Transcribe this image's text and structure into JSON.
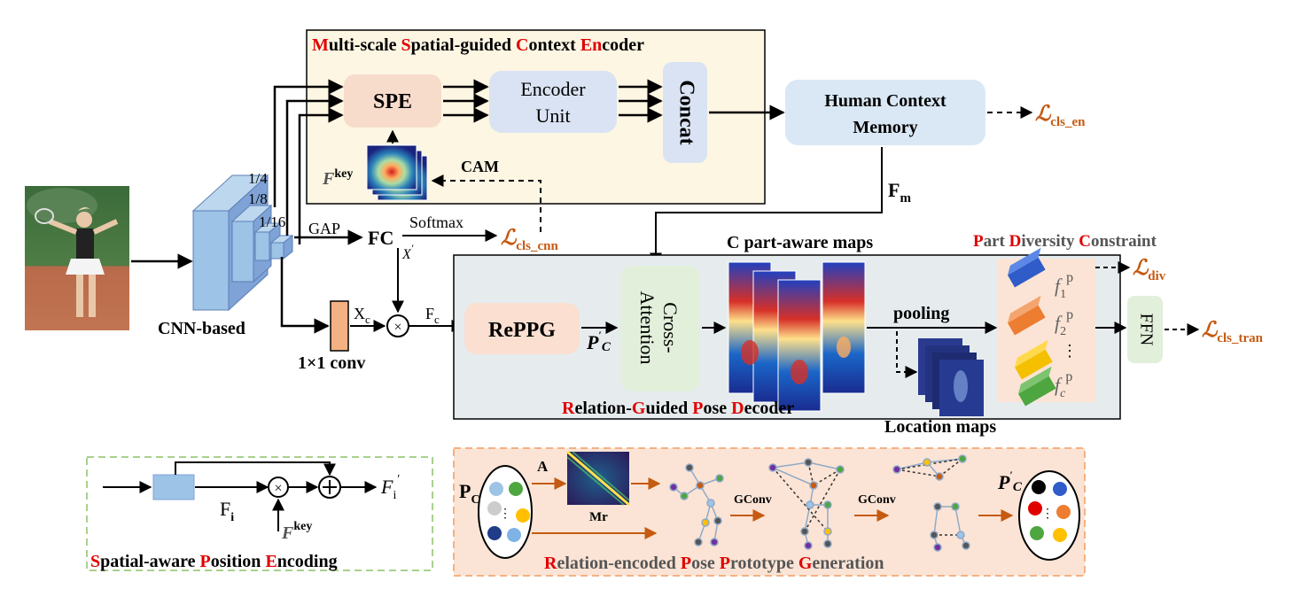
{
  "encoder": {
    "title": [
      {
        "initial": "M",
        "rest": "ulti-scale "
      },
      {
        "initial": "S",
        "rest": "patial-guided  "
      },
      {
        "initial": "C",
        "rest": "ontext "
      },
      {
        "initial": "E",
        "rest": "n",
        "tail": "coder"
      }
    ],
    "spe": "SPE",
    "encoder_unit_line1": "Encoder",
    "encoder_unit_line2": "Unit",
    "concat": "Concat",
    "fkey_label": "F",
    "fkey_sup": "key",
    "cam": "CAM"
  },
  "memory": {
    "line1": "Human Context",
    "line2": "Memory",
    "fm": "F",
    "fm_sub": "m",
    "loss": "cls_en"
  },
  "backbone": {
    "scale_1_4": "1/4",
    "scale_1_8": "1/8",
    "scale_1_16": "1/16",
    "gap": "GAP",
    "fc": "FC",
    "softmax": "Softmax",
    "xprime": "X",
    "loss": "cls_cnn",
    "cnn_label": "CNN-based",
    "conv_label": "1×1 conv",
    "xc": "X",
    "xc_sub": "c",
    "fc_feat": "F",
    "fc_feat_sub": "c",
    "multiply": "×"
  },
  "decoder": {
    "reppg": "RePPG",
    "pc": "P",
    "pc_sub": "C",
    "cross_line1": "Cross-",
    "cross_line2": "Attention",
    "maps_title": "C part-aware maps",
    "pooling": "pooling",
    "location_maps": "Location maps",
    "title_parts": [
      {
        "initial": "R",
        "rest": "elation-"
      },
      {
        "initial": "G",
        "rest": "uided "
      },
      {
        "initial": "P",
        "rest": "ose "
      },
      {
        "initial": "D",
        "rest": "ecoder"
      }
    ]
  },
  "diversity": {
    "title_parts": [
      {
        "initial": "P",
        "rest": "art "
      },
      {
        "initial": "D",
        "rest": "iversity "
      },
      {
        "initial": "C",
        "rest": "onstraint"
      }
    ],
    "f1_sub": "1",
    "f2_sub": "2",
    "fc_sub": "c",
    "sup": "p",
    "f": "f",
    "dots": "⋮",
    "loss": "div"
  },
  "ffn": {
    "label": "FFN",
    "loss": "cls_tran"
  },
  "spe_detail": {
    "fi": "F",
    "fi_sub": "i",
    "fi_prime": "F",
    "fi_prime_sub": "i",
    "fkey": "F",
    "fkey_sup": "key",
    "title_parts": [
      {
        "initial": "S",
        "rest": "patial-aware "
      },
      {
        "initial": "P",
        "rest": "osition  "
      },
      {
        "initial": "E",
        "rest": "ncoding"
      }
    ]
  },
  "reppg_detail": {
    "pc": "P",
    "pc_sub": "C",
    "a": "A",
    "mr": "Mr",
    "gconv1": "GConv",
    "gconv2": "GConv",
    "pc_prime": "P",
    "pc_prime_sub": "C",
    "dots": "⋮",
    "title_parts": [
      {
        "initial": "R",
        "rest": "elation-encoded "
      },
      {
        "initial": "P",
        "rest": "ose "
      },
      {
        "initial": "P",
        "rest": "rototype "
      },
      {
        "initial": "G",
        "rest": "eneration"
      }
    ]
  },
  "loss_symbol": "ℒ",
  "colors": {
    "encoder_bg": "#fdf6e3",
    "spe_box": "#f8dccb",
    "encoder_unit": "#dae3f3",
    "memory": "#dae8f5",
    "decoder_bg": "#e6ecee",
    "reppg_box": "#fbdfd0",
    "cross_attn": "#e2efda",
    "ffn": "#e2efda",
    "diversity_bg": "#fbe4d5",
    "spe_detail_border": "#a9d18e",
    "reppg_detail_bg": "#fbe4d5",
    "reppg_detail_border": "#f4b183",
    "accent_red": "#e00000",
    "loss_orange": "#c55a11"
  }
}
